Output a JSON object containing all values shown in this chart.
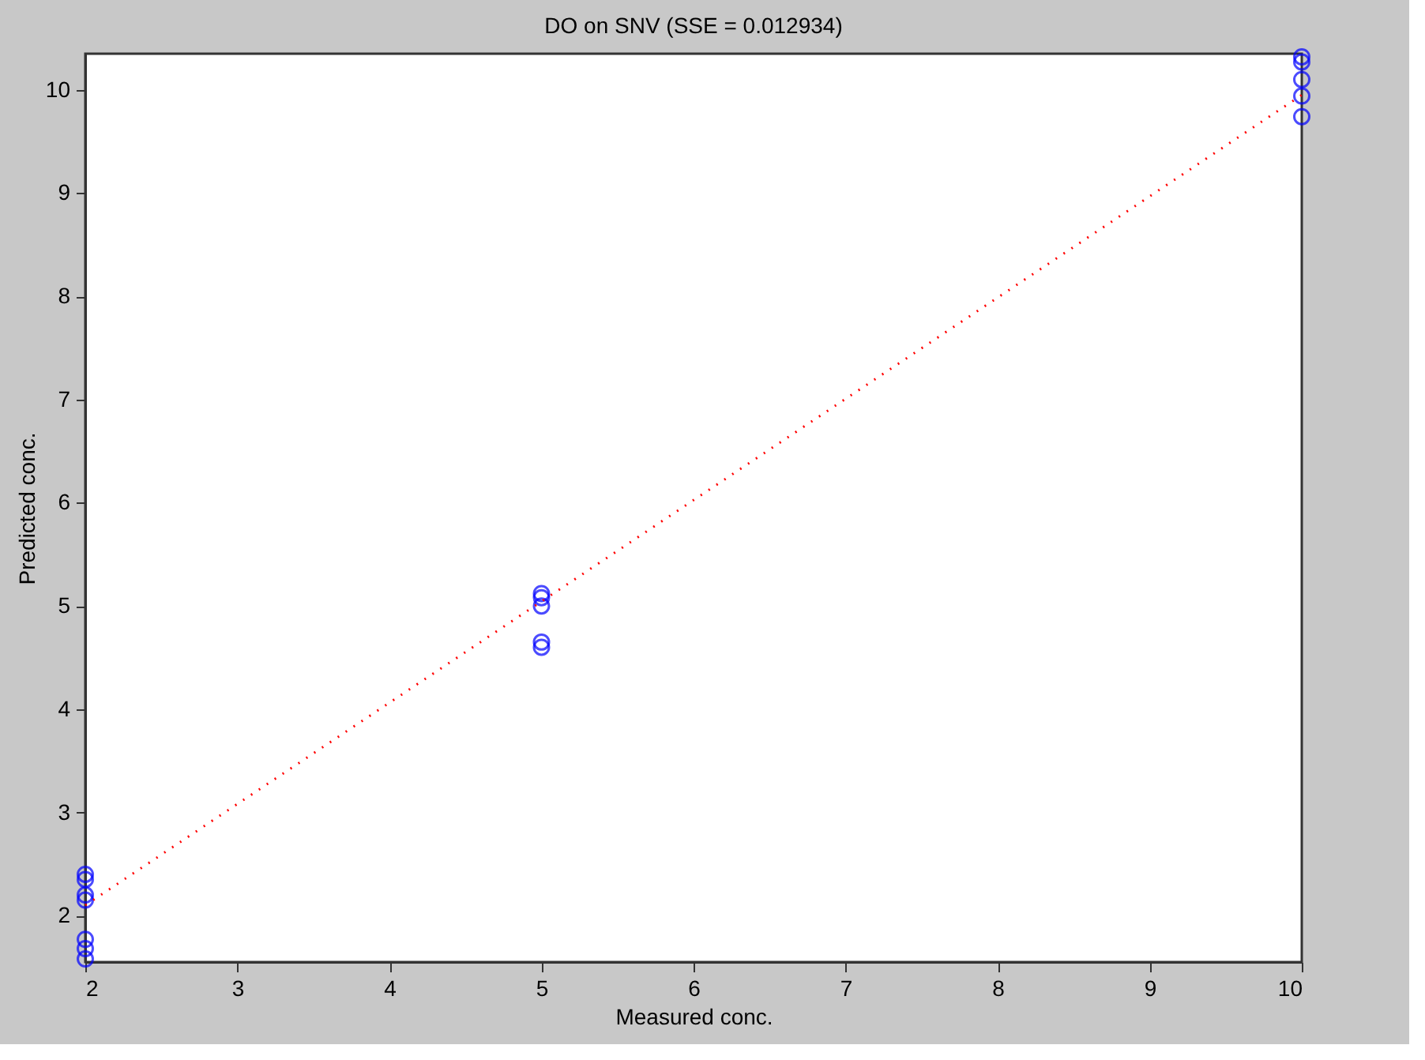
{
  "chart_data": {
    "type": "scatter",
    "title": "DO on SNV (SSE = 0.012934)",
    "xlabel": "Measured conc.",
    "ylabel": "Predicted conc.",
    "xlim": [
      2,
      10
    ],
    "ylim": [
      1.55,
      10.35
    ],
    "xticks": [
      2,
      3,
      4,
      5,
      6,
      7,
      8,
      9,
      10
    ],
    "yticks": [
      2,
      3,
      4,
      5,
      6,
      7,
      8,
      9,
      10
    ],
    "grid": false,
    "series": [
      {
        "color": "#0000ff",
        "marker": "circle",
        "x": [
          2,
          2,
          2,
          2,
          2,
          2,
          2,
          5,
          5,
          5,
          5,
          5,
          10,
          10,
          10,
          10,
          10
        ],
        "values": [
          2.4,
          2.35,
          2.2,
          2.15,
          1.77,
          1.68,
          1.58,
          5.12,
          5.08,
          5.0,
          4.65,
          4.6,
          10.32,
          10.27,
          10.1,
          9.94,
          9.74
        ]
      },
      {
        "type": "line",
        "color": "#ff0000",
        "line_style": "dotted",
        "x": [
          2,
          10
        ],
        "values": [
          2.1,
          9.95
        ]
      }
    ]
  }
}
